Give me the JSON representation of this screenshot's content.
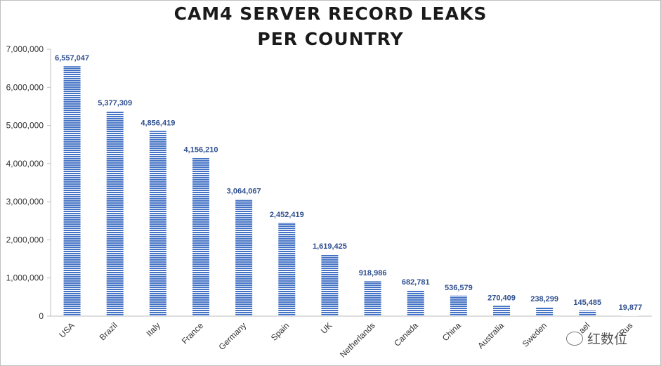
{
  "chart_data": {
    "type": "bar",
    "title_lines": [
      "CAM4 SERVER RECORD LEAKS",
      "PER COUNTRY"
    ],
    "categories": [
      "USA",
      "Brazil",
      "Italy",
      "France",
      "Germany",
      "Spain",
      "UK",
      "Netherlands",
      "Canada",
      "China",
      "Australia",
      "Sweden",
      "Israel",
      "Russia"
    ],
    "tick_labels_visible": [
      "USA",
      "Brazil",
      "Italy",
      "France",
      "Germany",
      "Spain",
      "UK",
      "Netherlands",
      "Canada",
      "China",
      "Australia",
      "Sweden",
      "ael",
      "Rus"
    ],
    "values": [
      6557047,
      5377309,
      4856419,
      4156210,
      3064067,
      2452419,
      1619425,
      918986,
      682781,
      536579,
      270409,
      238299,
      145485,
      19877
    ],
    "data_labels": [
      "6,557,047",
      "5,377,309",
      "4,856,419",
      "4,156,210",
      "3,064,067",
      "2,452,419",
      "1,619,425",
      "918,986",
      "682,781",
      "536,579",
      "270,409",
      "238,299",
      "145,485",
      "19,877"
    ],
    "ylim": [
      0,
      7000000
    ],
    "yticks": [
      0,
      1000000,
      2000000,
      3000000,
      4000000,
      5000000,
      6000000,
      7000000
    ],
    "ytick_labels": [
      "0",
      "1,000,000",
      "2,000,000",
      "3,000,000",
      "4,000,000",
      "5,000,000",
      "6,000,000",
      "7,000,000"
    ],
    "grid": false,
    "legend": "none",
    "colors": {
      "bar": "#4472c4",
      "bar_stripe": "#ffffff",
      "label": "#2f4f8f"
    }
  },
  "watermark": {
    "text": "红数位",
    "icon": "wechat-icon"
  }
}
